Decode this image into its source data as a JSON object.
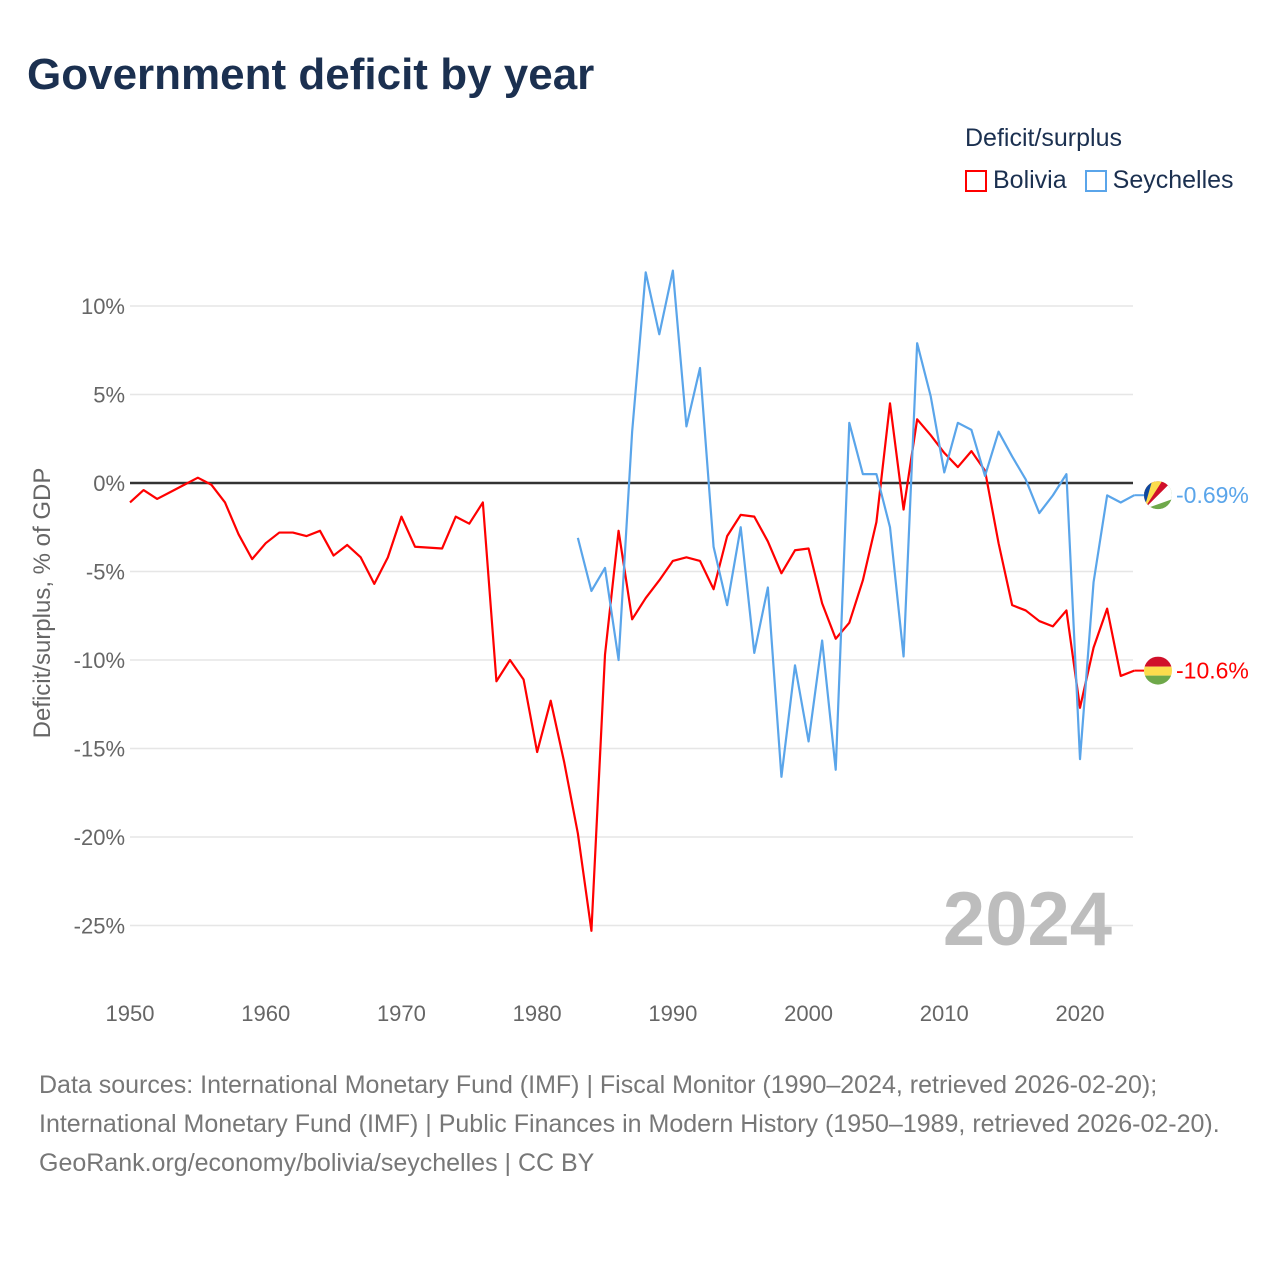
{
  "chart_data": {
    "type": "line",
    "title": "Government deficit by year",
    "ylabel": "Deficit/surplus, % of GDP",
    "xlabel": "",
    "xlim": [
      1950,
      2024
    ],
    "ylim": [
      -27,
      12.5
    ],
    "x_ticks": [
      "1950",
      "1960",
      "1970",
      "1980",
      "1990",
      "2000",
      "2010",
      "2020"
    ],
    "y_ticks": [
      {
        "value": 10,
        "label": "10%"
      },
      {
        "value": 5,
        "label": "5%"
      },
      {
        "value": 0,
        "label": "0%"
      },
      {
        "value": -5,
        "label": "-5%"
      },
      {
        "value": -10,
        "label": "-10%"
      },
      {
        "value": -15,
        "label": "-15%"
      },
      {
        "value": -20,
        "label": "-20%"
      },
      {
        "value": -25,
        "label": "-25%"
      }
    ],
    "grid": true,
    "legend_title": "Deficit/surplus",
    "legend_position": "top-right",
    "year_watermark": "2024",
    "series": [
      {
        "name": "Bolivia",
        "color": "#ff0000",
        "end_label": "-10.6%",
        "start_year": 1950,
        "values": [
          -1.1,
          -0.4,
          -0.9,
          -0.5,
          -0.1,
          0.3,
          -0.1,
          -1.1,
          -2.9,
          -4.3,
          -3.4,
          -2.8,
          -2.8,
          -3.0,
          -2.7,
          -4.1,
          -3.5,
          -4.2,
          -5.7,
          -4.2,
          -1.9,
          -3.6,
          -3.65,
          -3.7,
          -1.9,
          -2.3,
          -1.1,
          -11.2,
          -10.0,
          -11.1,
          -15.2,
          -12.3,
          -15.8,
          -19.8,
          -25.3,
          -9.7,
          -2.7,
          -7.7,
          -6.5,
          -5.5,
          -4.4,
          -4.2,
          -4.4,
          -6.0,
          -3.0,
          -1.8,
          -1.9,
          -3.3,
          -5.1,
          -3.8,
          -3.7,
          -6.8,
          -8.8,
          -7.9,
          -5.5,
          -2.2,
          4.5,
          -1.5,
          3.6,
          2.7,
          1.7,
          0.9,
          1.8,
          0.7,
          -3.4,
          -6.9,
          -7.2,
          -7.8,
          -8.1,
          -7.2,
          -12.7,
          -9.3,
          -7.1,
          -10.9,
          -10.6
        ]
      },
      {
        "name": "Seychelles",
        "color": "#5aa5ea",
        "end_label": "-0.69%",
        "start_year": 1983,
        "values": [
          -3.1,
          -6.1,
          -4.8,
          -10.0,
          2.9,
          11.9,
          8.4,
          12.0,
          3.2,
          6.5,
          -3.6,
          -6.9,
          -2.5,
          -9.6,
          -5.9,
          -16.6,
          -10.3,
          -14.6,
          -8.9,
          -16.2,
          3.4,
          0.5,
          0.5,
          -2.5,
          -9.8,
          7.9,
          4.9,
          0.6,
          3.4,
          3.0,
          0.4,
          2.9,
          1.5,
          0.2,
          -1.7,
          -0.7,
          0.5,
          -15.6,
          -5.6,
          -0.7,
          -1.1,
          -0.69
        ]
      }
    ]
  },
  "footer": {
    "sources": "Data sources: International Monetary Fund (IMF) | Fiscal Monitor (1990–2024, retrieved 2026-02-20); International Monetary Fund (IMF) | Public Finances in Modern History (1950–1989, retrieved 2026-02-20).",
    "credit": "GeoRank.org/economy/bolivia/seychelles | CC BY"
  }
}
